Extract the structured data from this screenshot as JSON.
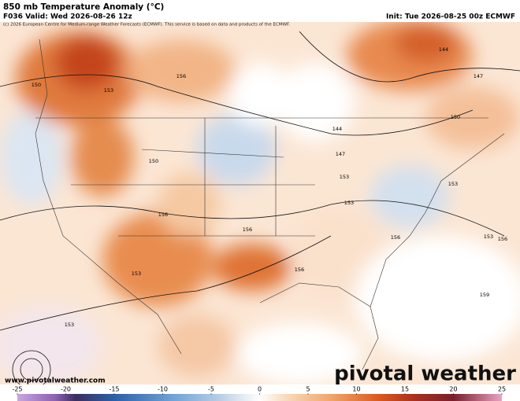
{
  "header": {
    "title": "850 mb Temperature Anomaly (°C)",
    "valid": "F036 Valid: Wed 2026-08-26 12z",
    "init": "Init: Tue 2026-08-25 00z ECMWF",
    "copyright": "(c) 2026 European Centre for Medium-range Weather Forecasts (ECMWF). This service is based on data and products of the ECMWF."
  },
  "map": {
    "contour_labels": [
      "150",
      "153",
      "156",
      "150",
      "153",
      "156",
      "153",
      "156",
      "153",
      "144",
      "147",
      "150",
      "144",
      "147",
      "153",
      "153",
      "156",
      "156",
      "159",
      "156",
      "153"
    ]
  },
  "footer": {
    "website": "www.pivotalweather.com",
    "logo": "pivotal weather"
  },
  "colorbar": {
    "ticks": [
      -25,
      -20,
      -15,
      -10,
      -5,
      0,
      5,
      10,
      15,
      20,
      25
    ],
    "range": [
      -25,
      25
    ]
  }
}
